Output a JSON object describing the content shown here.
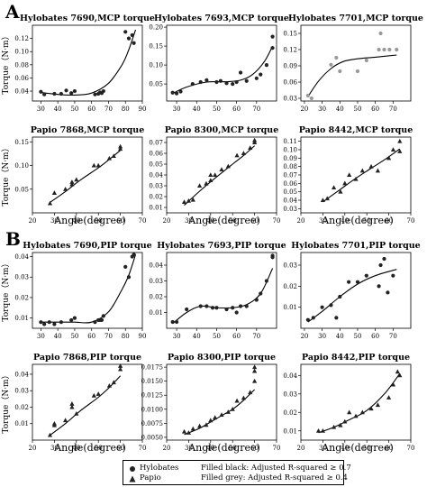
{
  "section_labels": [
    "A",
    "B"
  ],
  "xlabel": "Angle(degree)",
  "ylabel": "Torque（N·m）",
  "legend": {
    "species": [
      {
        "name": "Hylobates",
        "marker": "circle"
      },
      {
        "name": "Papio",
        "marker": "triangle"
      }
    ],
    "fill_notes": [
      "Filled black: Adjusted R-squared ≥ 0.7",
      "Filled grey: Adjusted R-squared ≥ 0.4"
    ]
  },
  "chart_data": [
    {
      "title": "Hylobates 7690,MCP torque",
      "type": "scatter",
      "species": "Hylobates",
      "fill": "#222222",
      "xlim": [
        25,
        90
      ],
      "xticks": [
        30,
        40,
        50,
        60,
        70,
        80,
        90
      ],
      "ylim": [
        0.025,
        0.14
      ],
      "yticks": [
        0.04,
        0.06,
        0.08,
        0.1,
        0.12
      ],
      "points": [
        [
          30,
          0.039
        ],
        [
          32,
          0.035
        ],
        [
          38,
          0.036
        ],
        [
          42,
          0.036
        ],
        [
          45,
          0.041
        ],
        [
          48,
          0.037
        ],
        [
          50,
          0.04
        ],
        [
          62,
          0.035
        ],
        [
          64,
          0.036
        ],
        [
          65,
          0.038
        ],
        [
          66,
          0.037
        ],
        [
          67,
          0.04
        ],
        [
          80,
          0.13
        ],
        [
          82,
          0.12
        ],
        [
          84,
          0.125
        ],
        [
          85,
          0.113
        ]
      ],
      "fit": [
        [
          30,
          0.038
        ],
        [
          40,
          0.035
        ],
        [
          50,
          0.034
        ],
        [
          60,
          0.037
        ],
        [
          70,
          0.052
        ],
        [
          78,
          0.08
        ],
        [
          82,
          0.103
        ],
        [
          86,
          0.133
        ]
      ]
    },
    {
      "title": "Hylobates 7693,MCP torque",
      "type": "scatter",
      "species": "Hylobates",
      "fill": "#222222",
      "xlim": [
        25,
        80
      ],
      "xticks": [
        30,
        40,
        50,
        60,
        70
      ],
      "ylim": [
        0.005,
        0.205
      ],
      "yticks": [
        0.05,
        0.1,
        0.15,
        0.2
      ],
      "points": [
        [
          28,
          0.027
        ],
        [
          30,
          0.025
        ],
        [
          32,
          0.03
        ],
        [
          38,
          0.05
        ],
        [
          42,
          0.055
        ],
        [
          45,
          0.06
        ],
        [
          50,
          0.055
        ],
        [
          52,
          0.058
        ],
        [
          55,
          0.052
        ],
        [
          58,
          0.05
        ],
        [
          60,
          0.055
        ],
        [
          62,
          0.08
        ],
        [
          65,
          0.058
        ],
        [
          70,
          0.065
        ],
        [
          72,
          0.075
        ],
        [
          75,
          0.1
        ],
        [
          78,
          0.145
        ],
        [
          78,
          0.175
        ]
      ],
      "fit": [
        [
          28,
          0.025
        ],
        [
          35,
          0.042
        ],
        [
          45,
          0.055
        ],
        [
          55,
          0.056
        ],
        [
          62,
          0.06
        ],
        [
          68,
          0.075
        ],
        [
          74,
          0.11
        ],
        [
          78,
          0.15
        ]
      ]
    },
    {
      "title": "Hylobates 7701,MCP torque",
      "type": "scatter",
      "species": "Hylobates",
      "fill": "#999999",
      "xlim": [
        18,
        80
      ],
      "xticks": [
        20,
        30,
        40,
        50,
        60,
        70
      ],
      "ylim": [
        0.025,
        0.165
      ],
      "yticks": [
        0.03,
        0.06,
        0.09,
        0.12,
        0.15
      ],
      "points": [
        [
          22,
          0.035
        ],
        [
          24,
          0.03
        ],
        [
          35,
          0.092
        ],
        [
          38,
          0.105
        ],
        [
          40,
          0.08
        ],
        [
          50,
          0.08
        ],
        [
          55,
          0.1
        ],
        [
          62,
          0.12
        ],
        [
          63,
          0.15
        ],
        [
          65,
          0.12
        ],
        [
          68,
          0.12
        ],
        [
          72,
          0.12
        ]
      ],
      "fit": [
        [
          22,
          0.033
        ],
        [
          28,
          0.062
        ],
        [
          35,
          0.085
        ],
        [
          42,
          0.098
        ],
        [
          50,
          0.103
        ],
        [
          60,
          0.106
        ],
        [
          72,
          0.11
        ]
      ]
    },
    {
      "title": "Papio 7868,MCP torque",
      "type": "scatter",
      "species": "Papio",
      "fill": "#222222",
      "xlim": [
        20,
        70
      ],
      "xticks": [
        20,
        30,
        40,
        50,
        60,
        70
      ],
      "ylim": [
        0,
        0.16
      ],
      "yticks": [
        0.05,
        0.1,
        0.15
      ],
      "points": [
        [
          28,
          0.02
        ],
        [
          30,
          0.042
        ],
        [
          35,
          0.05
        ],
        [
          38,
          0.06
        ],
        [
          38,
          0.065
        ],
        [
          40,
          0.07
        ],
        [
          48,
          0.1
        ],
        [
          50,
          0.1
        ],
        [
          55,
          0.115
        ],
        [
          57,
          0.12
        ],
        [
          60,
          0.135
        ],
        [
          60,
          0.14
        ]
      ],
      "fit": [
        [
          28,
          0.022
        ],
        [
          35,
          0.045
        ],
        [
          42,
          0.07
        ],
        [
          50,
          0.095
        ],
        [
          55,
          0.113
        ],
        [
          60,
          0.132
        ]
      ]
    },
    {
      "title": "Papio 8300,MCP torque",
      "type": "scatter",
      "species": "Papio",
      "fill": "#222222",
      "xlim": [
        20,
        70
      ],
      "xticks": [
        20,
        30,
        40,
        50,
        60,
        70
      ],
      "ylim": [
        0.005,
        0.075
      ],
      "yticks": [
        0.01,
        0.02,
        0.03,
        0.04,
        0.05,
        0.06,
        0.07
      ],
      "points": [
        [
          28,
          0.015
        ],
        [
          30,
          0.016
        ],
        [
          32,
          0.017
        ],
        [
          35,
          0.03
        ],
        [
          38,
          0.032
        ],
        [
          40,
          0.035
        ],
        [
          40,
          0.04
        ],
        [
          42,
          0.04
        ],
        [
          45,
          0.045
        ],
        [
          48,
          0.048
        ],
        [
          52,
          0.058
        ],
        [
          55,
          0.06
        ],
        [
          58,
          0.065
        ],
        [
          60,
          0.07
        ],
        [
          60,
          0.072
        ]
      ],
      "fit": [
        [
          28,
          0.012
        ],
        [
          35,
          0.025
        ],
        [
          42,
          0.037
        ],
        [
          50,
          0.05
        ],
        [
          55,
          0.058
        ],
        [
          60,
          0.067
        ]
      ]
    },
    {
      "title": "Papio 8442,MCP torque",
      "type": "scatter",
      "species": "Papio",
      "fill": "#222222",
      "xlim": [
        20,
        70
      ],
      "xticks": [
        20,
        30,
        40,
        50,
        60,
        70
      ],
      "ylim": [
        0.025,
        0.115
      ],
      "yticks": [
        0.03,
        0.04,
        0.05,
        0.06,
        0.07,
        0.08,
        0.09,
        0.1,
        0.11
      ],
      "points": [
        [
          30,
          0.04
        ],
        [
          32,
          0.042
        ],
        [
          35,
          0.055
        ],
        [
          38,
          0.05
        ],
        [
          40,
          0.06
        ],
        [
          42,
          0.07
        ],
        [
          45,
          0.065
        ],
        [
          48,
          0.075
        ],
        [
          52,
          0.08
        ],
        [
          55,
          0.075
        ],
        [
          60,
          0.09
        ],
        [
          62,
          0.1
        ],
        [
          65,
          0.11
        ],
        [
          65,
          0.098
        ]
      ],
      "fit": [
        [
          30,
          0.038
        ],
        [
          38,
          0.053
        ],
        [
          45,
          0.066
        ],
        [
          52,
          0.078
        ],
        [
          58,
          0.088
        ],
        [
          65,
          0.101
        ]
      ]
    },
    {
      "title": "Hylobates 7690,PIP torque",
      "type": "scatter",
      "species": "Hylobates",
      "fill": "#222222",
      "xlim": [
        25,
        90
      ],
      "xticks": [
        30,
        40,
        50,
        60,
        70,
        80,
        90
      ],
      "ylim": [
        0.005,
        0.042
      ],
      "yticks": [
        0.01,
        0.02,
        0.03,
        0.04
      ],
      "points": [
        [
          30,
          0.008
        ],
        [
          32,
          0.007
        ],
        [
          35,
          0.008
        ],
        [
          38,
          0.007
        ],
        [
          42,
          0.008
        ],
        [
          48,
          0.009
        ],
        [
          50,
          0.01
        ],
        [
          62,
          0.008
        ],
        [
          64,
          0.009
        ],
        [
          65,
          0.009
        ],
        [
          66,
          0.009
        ],
        [
          67,
          0.011
        ],
        [
          80,
          0.035
        ],
        [
          82,
          0.03
        ],
        [
          84,
          0.04
        ],
        [
          85,
          0.041
        ]
      ],
      "fit": [
        [
          30,
          0.008
        ],
        [
          40,
          0.008
        ],
        [
          50,
          0.008
        ],
        [
          60,
          0.008
        ],
        [
          70,
          0.013
        ],
        [
          78,
          0.024
        ],
        [
          82,
          0.031
        ],
        [
          86,
          0.041
        ]
      ]
    },
    {
      "title": "Hylobates 7693,PIP torque",
      "type": "scatter",
      "species": "Hylobates",
      "fill": "#222222",
      "xlim": [
        25,
        80
      ],
      "xticks": [
        30,
        40,
        50,
        60,
        70
      ],
      "ylim": [
        0,
        0.048
      ],
      "yticks": [
        0.01,
        0.02,
        0.03,
        0.04
      ],
      "points": [
        [
          28,
          0.004
        ],
        [
          30,
          0.004
        ],
        [
          35,
          0.012
        ],
        [
          42,
          0.014
        ],
        [
          45,
          0.014
        ],
        [
          48,
          0.013
        ],
        [
          50,
          0.013
        ],
        [
          55,
          0.012
        ],
        [
          58,
          0.013
        ],
        [
          60,
          0.01
        ],
        [
          62,
          0.014
        ],
        [
          65,
          0.014
        ],
        [
          70,
          0.018
        ],
        [
          72,
          0.022
        ],
        [
          75,
          0.03
        ],
        [
          78,
          0.045
        ],
        [
          78,
          0.046
        ]
      ],
      "fit": [
        [
          28,
          0.003
        ],
        [
          35,
          0.01
        ],
        [
          42,
          0.014
        ],
        [
          50,
          0.013
        ],
        [
          58,
          0.013
        ],
        [
          65,
          0.015
        ],
        [
          72,
          0.022
        ],
        [
          78,
          0.038
        ]
      ]
    },
    {
      "title": "Hylobates 7701,PIP torque",
      "type": "scatter",
      "species": "Hylobates",
      "fill": "#222222",
      "xlim": [
        18,
        80
      ],
      "xticks": [
        20,
        30,
        40,
        50,
        60,
        70
      ],
      "ylim": [
        0,
        0.036
      ],
      "yticks": [
        0.01,
        0.02,
        0.03
      ],
      "points": [
        [
          22,
          0.004
        ],
        [
          25,
          0.005
        ],
        [
          30,
          0.01
        ],
        [
          35,
          0.011
        ],
        [
          38,
          0.005
        ],
        [
          40,
          0.015
        ],
        [
          45,
          0.022
        ],
        [
          50,
          0.022
        ],
        [
          55,
          0.025
        ],
        [
          62,
          0.02
        ],
        [
          63,
          0.03
        ],
        [
          65,
          0.033
        ],
        [
          67,
          0.017
        ],
        [
          70,
          0.025
        ]
      ],
      "fit": [
        [
          22,
          0.003
        ],
        [
          30,
          0.008
        ],
        [
          40,
          0.015
        ],
        [
          50,
          0.021
        ],
        [
          60,
          0.025
        ],
        [
          72,
          0.028
        ]
      ]
    },
    {
      "title": "Papio 7868,PIP torque",
      "type": "scatter",
      "species": "Papio",
      "fill": "#222222",
      "xlim": [
        20,
        70
      ],
      "xticks": [
        20,
        30,
        40,
        50,
        60,
        70
      ],
      "ylim": [
        0,
        0.046
      ],
      "yticks": [
        0.01,
        0.02,
        0.03,
        0.04
      ],
      "points": [
        [
          28,
          0.003
        ],
        [
          30,
          0.009
        ],
        [
          30,
          0.01
        ],
        [
          35,
          0.012
        ],
        [
          38,
          0.02
        ],
        [
          38,
          0.022
        ],
        [
          40,
          0.016
        ],
        [
          48,
          0.027
        ],
        [
          50,
          0.028
        ],
        [
          55,
          0.033
        ],
        [
          57,
          0.035
        ],
        [
          60,
          0.043
        ],
        [
          60,
          0.045
        ]
      ],
      "fit": [
        [
          28,
          0.003
        ],
        [
          35,
          0.01
        ],
        [
          42,
          0.018
        ],
        [
          50,
          0.026
        ],
        [
          55,
          0.032
        ],
        [
          60,
          0.039
        ]
      ]
    },
    {
      "title": "Papio 8300,PIP torque",
      "type": "scatter",
      "species": "Papio",
      "fill": "#222222",
      "xlim": [
        20,
        70
      ],
      "xticks": [
        20,
        30,
        40,
        50,
        60,
        70
      ],
      "ylim": [
        0.0045,
        0.018
      ],
      "yticks": [
        0.005,
        0.0075,
        0.01,
        0.0125,
        0.015,
        0.0175
      ],
      "points": [
        [
          28,
          0.006
        ],
        [
          30,
          0.0058
        ],
        [
          32,
          0.0065
        ],
        [
          35,
          0.007
        ],
        [
          38,
          0.0072
        ],
        [
          40,
          0.008
        ],
        [
          42,
          0.0085
        ],
        [
          45,
          0.009
        ],
        [
          48,
          0.0095
        ],
        [
          50,
          0.01
        ],
        [
          52,
          0.0115
        ],
        [
          55,
          0.012
        ],
        [
          58,
          0.013
        ],
        [
          60,
          0.015
        ],
        [
          60,
          0.0168
        ],
        [
          60,
          0.0175
        ]
      ],
      "fit": [
        [
          28,
          0.0055
        ],
        [
          35,
          0.0066
        ],
        [
          42,
          0.0082
        ],
        [
          50,
          0.01
        ],
        [
          55,
          0.0116
        ],
        [
          60,
          0.0135
        ]
      ]
    },
    {
      "title": "Papio 8442,PIP torque",
      "type": "scatter",
      "species": "Papio",
      "fill": "#222222",
      "xlim": [
        20,
        70
      ],
      "xticks": [
        20,
        30,
        40,
        50,
        60,
        70
      ],
      "ylim": [
        0.005,
        0.046
      ],
      "yticks": [
        0.01,
        0.02,
        0.03,
        0.04
      ],
      "points": [
        [
          28,
          0.01
        ],
        [
          30,
          0.01
        ],
        [
          35,
          0.012
        ],
        [
          38,
          0.013
        ],
        [
          40,
          0.015
        ],
        [
          42,
          0.02
        ],
        [
          45,
          0.018
        ],
        [
          48,
          0.02
        ],
        [
          52,
          0.022
        ],
        [
          55,
          0.024
        ],
        [
          60,
          0.028
        ],
        [
          62,
          0.035
        ],
        [
          64,
          0.042
        ],
        [
          65,
          0.04
        ]
      ],
      "fit": [
        [
          28,
          0.009
        ],
        [
          35,
          0.012
        ],
        [
          42,
          0.016
        ],
        [
          50,
          0.021
        ],
        [
          58,
          0.03
        ],
        [
          65,
          0.041
        ]
      ]
    }
  ]
}
